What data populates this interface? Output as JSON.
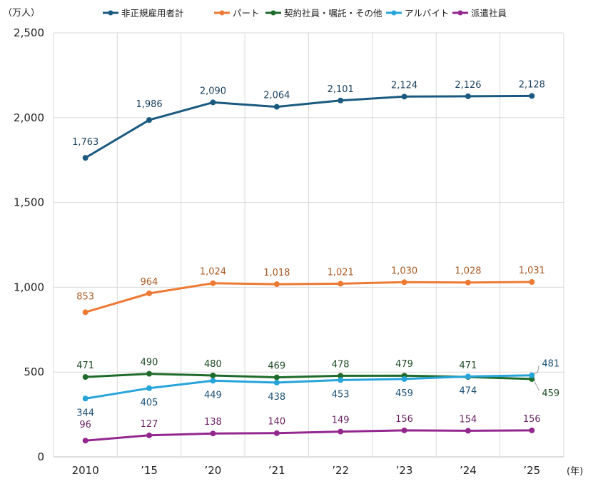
{
  "chart_data": {
    "type": "line",
    "y_unit_label": "（万人）",
    "x_unit_label": "(年)",
    "categories": [
      "2010",
      "’15",
      "’20",
      "’21",
      "’22",
      "’23",
      "’24",
      "’25"
    ],
    "ylim": [
      0,
      2500
    ],
    "yticks": [
      "0",
      "500",
      "1,000",
      "1,500",
      "2,000",
      "2,500"
    ],
    "ytick_values": [
      0,
      500,
      1000,
      1500,
      2000,
      2500
    ],
    "grid": true,
    "legend_position": "top",
    "series": [
      {
        "name": "非正規雇用者計",
        "color": "#1b5a80",
        "label_color": "#1b3f5c",
        "values": [
          1763,
          1986,
          2090,
          2064,
          2101,
          2124,
          2126,
          2128
        ],
        "labels": [
          "1,763",
          "1,986",
          "2,090",
          "2,064",
          "2,101",
          "2,124",
          "2,126",
          "2,128"
        ]
      },
      {
        "name": "パート",
        "color": "#ec7a34",
        "label_color": "#a85a24",
        "values": [
          853,
          964,
          1024,
          1018,
          1021,
          1030,
          1028,
          1031
        ],
        "labels": [
          "853",
          "964",
          "1,024",
          "1,018",
          "1,021",
          "1,030",
          "1,028",
          "1,031"
        ]
      },
      {
        "name": "契約社員・嘱託・その他",
        "color": "#1f6b2a",
        "label_color": "#1f4a25",
        "values": [
          471,
          490,
          480,
          469,
          478,
          479,
          471,
          459
        ],
        "labels": [
          "471",
          "490",
          "480",
          "469",
          "478",
          "479",
          "471",
          "459"
        ]
      },
      {
        "name": "アルバイト",
        "color": "#27a4d9",
        "label_color": "#1b4f73",
        "values": [
          344,
          405,
          449,
          438,
          453,
          459,
          474,
          481
        ],
        "labels": [
          "344",
          "405",
          "449",
          "438",
          "453",
          "459",
          "474",
          "481"
        ]
      },
      {
        "name": "派遣社員",
        "color": "#93278f",
        "label_color": "#6a2262",
        "values": [
          96,
          127,
          138,
          140,
          149,
          156,
          154,
          156
        ],
        "labels": [
          "96",
          "127",
          "138",
          "140",
          "149",
          "156",
          "154",
          "156"
        ]
      }
    ]
  }
}
